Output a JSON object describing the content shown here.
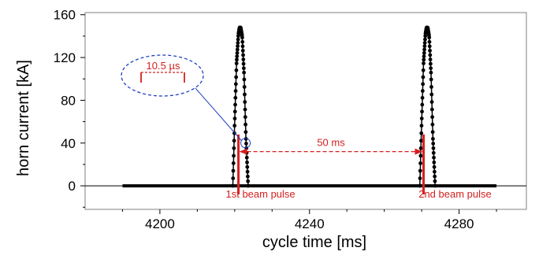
{
  "chart_data": {
    "type": "scatter",
    "title": "",
    "xlabel": "cycle time [ms]",
    "ylabel": "horn current [kA]",
    "xlim": [
      4180,
      4298
    ],
    "ylim": [
      -22,
      162
    ],
    "xticks": [
      4200,
      4240,
      4280
    ],
    "yticks": [
      0,
      40,
      80,
      120,
      160
    ],
    "grid": false,
    "legend": "none",
    "series": [
      {
        "color": "#000000",
        "baseline": {
          "x_start": 4190,
          "x_end": 4290,
          "y": 0
        },
        "pulses": [
          {
            "x": [
              4219.5,
              4220.0,
              4220.5,
              4221.0,
              4221.3,
              4221.6,
              4222.0,
              4222.5,
              4223.0,
              4223.6
            ],
            "y": [
              0,
              60,
              115,
              142,
              148,
              148,
              140,
              105,
              45,
              0
            ]
          },
          {
            "x": [
              4269.5,
              4270.0,
              4270.5,
              4271.0,
              4271.3,
              4271.6,
              4272.0,
              4272.5,
              4273.0,
              4273.6
            ],
            "y": [
              0,
              60,
              115,
              142,
              148,
              148,
              140,
              105,
              45,
              0
            ]
          }
        ]
      }
    ],
    "annotations": {
      "zoom_label": "10.5 µs",
      "gap_label": "50 ms",
      "pulse1_label": "1st beam pulse",
      "pulse2_label": "2nd beam pulse",
      "pulse1_x": 4221,
      "pulse2_x": 4270.5,
      "marker_top": 48,
      "gap_y": 32,
      "accent_color": "#d42020",
      "ellipse_color": "#1f3fbf"
    }
  }
}
